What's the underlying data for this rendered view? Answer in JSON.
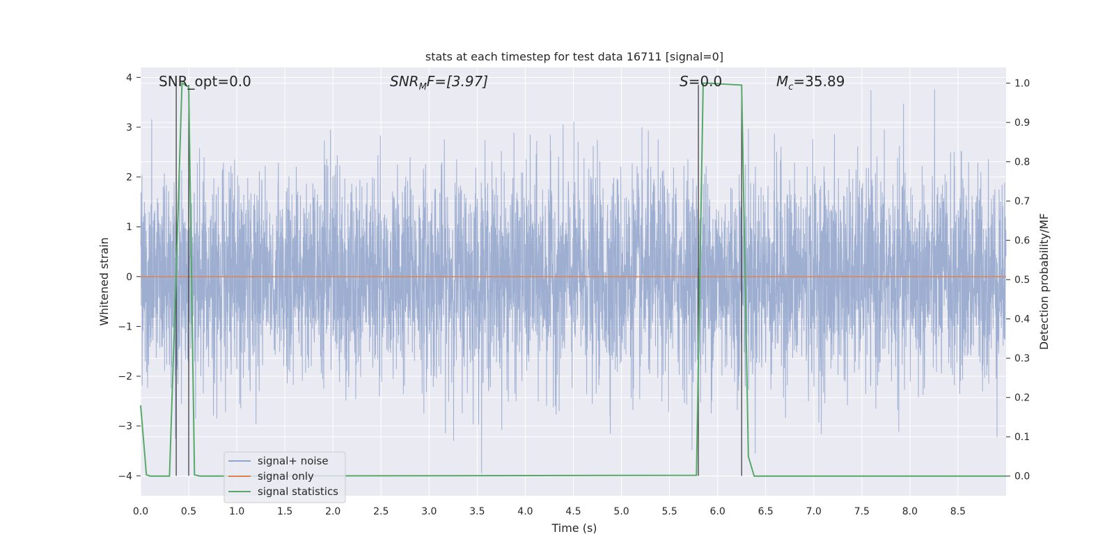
{
  "chart_data": {
    "type": "line",
    "title": "stats at each timestep for test data 16711 [signal=0]",
    "xlabel": "Time (s)",
    "ylabel": "Whitened strain",
    "ylabel_right": "Detection probability/MF",
    "xlim": [
      0.0,
      9.0
    ],
    "ylim": [
      -4.4,
      4.2
    ],
    "ylim_right": [
      -0.05,
      1.04
    ],
    "x_ticks": [
      "0.0",
      "0.5",
      "1.0",
      "1.5",
      "2.0",
      "2.5",
      "3.0",
      "3.5",
      "4.0",
      "4.5",
      "5.0",
      "5.5",
      "6.0",
      "6.5",
      "7.0",
      "7.5",
      "8.0",
      "8.5"
    ],
    "y_ticks": [
      "4",
      "3",
      "2",
      "1",
      "0",
      "−1",
      "−2",
      "−3",
      "−4"
    ],
    "y_right_ticks": [
      "1.0",
      "0.9",
      "0.8",
      "0.7",
      "0.6",
      "0.5",
      "0.4",
      "0.3",
      "0.2",
      "0.1",
      "0.0"
    ],
    "grid": true,
    "legend_position": "lower-left",
    "annotations": {
      "snr_opt": "SNR_opt=0.0",
      "snr_mf_label": "SNR",
      "snr_mf_sub": "M",
      "snr_mf_rest": "F=[3.97]",
      "s_label": "S",
      "s_rest": "=0.0",
      "mc_label": "M",
      "mc_sub": "c",
      "mc_rest": "=35.89"
    },
    "series": [
      {
        "name": "signal+ noise",
        "color": "#8fa3cb",
        "description_values": "whitened noise, approx. Gaussian, |y| mostly < 3.9",
        "sample_rate_hz": 1024
      },
      {
        "name": "signal only",
        "color": "#dd8452",
        "x": [
          0.0,
          9.0
        ],
        "y": [
          0.0,
          0.0
        ]
      },
      {
        "name": "signal statistics",
        "color": "#55a868",
        "axis": "right",
        "x": [
          0.0,
          0.06,
          0.1,
          0.3,
          0.38,
          0.43,
          0.5,
          0.56,
          0.62,
          5.78,
          5.85,
          5.9,
          6.25,
          6.32,
          6.38,
          9.0
        ],
        "y": [
          0.18,
          0.003,
          0.0,
          0.0,
          0.6,
          1.0,
          0.99,
          0.003,
          0.0,
          0.002,
          1.0,
          1.0,
          0.995,
          0.05,
          0.0,
          0.0
        ]
      }
    ],
    "vertical_markers_x": [
      0.37,
      0.5,
      5.8,
      6.25
    ]
  }
}
